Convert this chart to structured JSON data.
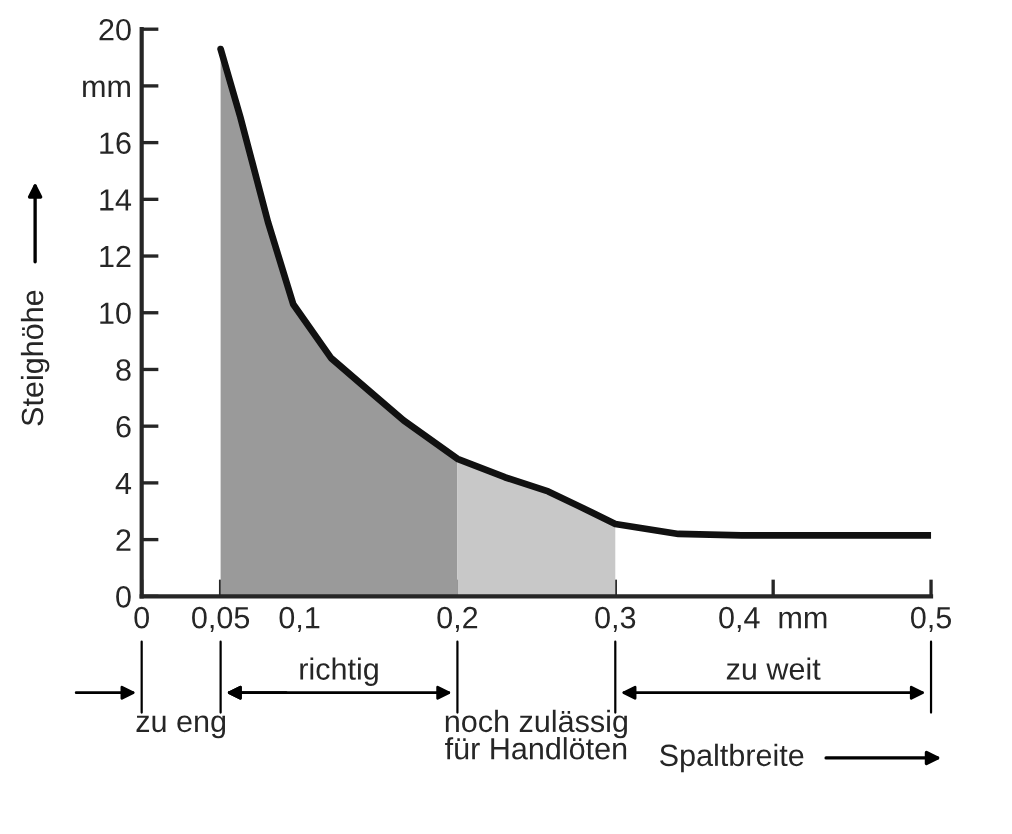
{
  "chart_data": {
    "type": "area",
    "xlabel": "Spaltbreite",
    "ylabel": "Steighöhe",
    "series": [
      {
        "color": "#9a9a9a",
        "x": [
          0.05,
          0.0625,
          0.08,
          0.096,
          0.12,
          0.145,
          0.166,
          0.2
        ],
        "values": [
          19.3,
          16.9,
          13.2,
          10.3,
          8.4,
          7.2,
          6.2,
          4.85
        ]
      },
      {
        "color": "#c8c8c8",
        "x": [
          0.2,
          0.23,
          0.2575,
          0.28,
          0.3
        ],
        "values": [
          4.85,
          4.2,
          3.7,
          3.1,
          2.55
        ]
      },
      {
        "type": "line",
        "color": "#111111",
        "x": [
          0.05,
          0.0625,
          0.08,
          0.096,
          0.12,
          0.145,
          0.166,
          0.2,
          0.23,
          0.2575,
          0.28,
          0.3,
          0.34,
          0.38,
          0.5
        ],
        "values": [
          19.3,
          16.9,
          13.2,
          10.3,
          8.4,
          7.2,
          6.2,
          4.85,
          4.2,
          3.7,
          3.1,
          2.55,
          2.2,
          2.15,
          2.15
        ]
      }
    ],
    "annotations": [
      "zu eng",
      "richtig",
      "noch zulässig\nfür Handlöten",
      "zu weit"
    ],
    "xlim": [
      0,
      0.5
    ],
    "ylim": [
      0,
      20
    ],
    "xticks": [
      {
        "value": 0,
        "label": "0"
      },
      {
        "value": 0.05,
        "label": "0,05"
      },
      {
        "value": 0.1,
        "label": "0,1"
      },
      {
        "value": 0.2,
        "label": "0,2"
      },
      {
        "value": 0.3,
        "label": "0,3"
      },
      {
        "value": 0.4,
        "label": "0,4  mm"
      },
      {
        "value": 0.5,
        "label": "0,5"
      }
    ],
    "yticks": [
      0,
      2,
      4,
      6,
      8,
      10,
      12,
      14,
      16,
      {
        "value": 18,
        "label": "mm"
      },
      20
    ]
  }
}
